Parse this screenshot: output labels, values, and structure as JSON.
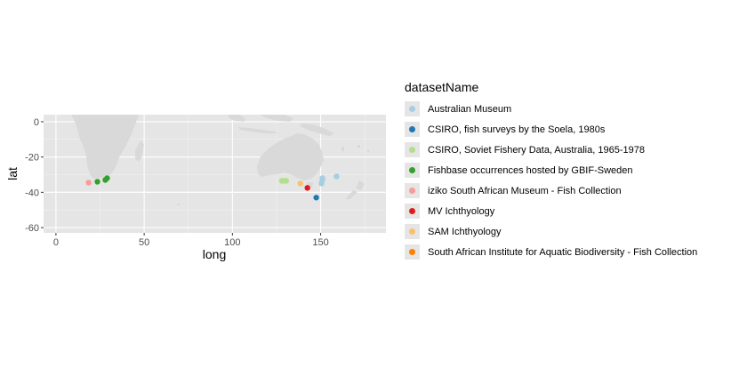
{
  "chart_data": {
    "type": "scatter",
    "xlabel": "long",
    "ylabel": "lat",
    "xlim": [
      -7,
      187
    ],
    "ylim": [
      -63,
      4
    ],
    "x_ticks": [
      0,
      50,
      100,
      150
    ],
    "x_tick_labels": [
      "0",
      "50",
      "100",
      "150"
    ],
    "y_ticks": [
      0,
      -20,
      -40,
      -60
    ],
    "y_tick_labels": [
      "0",
      "-20",
      "-40",
      "-60"
    ],
    "grid": true,
    "panel_background": "#e5e5e5",
    "land_color": "#d9d9d9",
    "legend_title": "datasetName",
    "legend_position": "right",
    "series": [
      {
        "name": "Australian Museum",
        "color": "#a6cee3",
        "points": [
          [
            151,
            -32
          ],
          [
            151,
            -33
          ],
          [
            150.5,
            -35
          ],
          [
            159,
            -31
          ]
        ]
      },
      {
        "name": "CSIRO, fish surveys by the Soela, 1980s",
        "color": "#1f78b4",
        "points": [
          [
            147.5,
            -43
          ]
        ]
      },
      {
        "name": "CSIRO, Soviet Fishery Data, Australia, 1965-1978",
        "color": "#b2df8a",
        "points": [
          [
            128,
            -33.5
          ],
          [
            129.5,
            -33.5
          ],
          [
            130.5,
            -33.5
          ]
        ]
      },
      {
        "name": "Fishbase occurrences hosted by GBIF-Sweden",
        "color": "#33a02c",
        "points": [
          [
            23.5,
            -34
          ],
          [
            28,
            -33
          ],
          [
            29,
            -32
          ]
        ]
      },
      {
        "name": "iziko South African Museum - Fish Collection",
        "color": "#fb9a99",
        "points": [
          [
            18.5,
            -34.5
          ]
        ]
      },
      {
        "name": "MV Ichthyology",
        "color": "#e31a1c",
        "points": [
          [
            142.5,
            -37.5
          ]
        ]
      },
      {
        "name": "SAM Ichthyology",
        "color": "#fdbf6f",
        "points": [
          [
            138.5,
            -35
          ]
        ]
      },
      {
        "name": "South African Institute for Aquatic Biodiversity - Fish Collection",
        "color": "#ff7f00",
        "points": []
      }
    ]
  }
}
